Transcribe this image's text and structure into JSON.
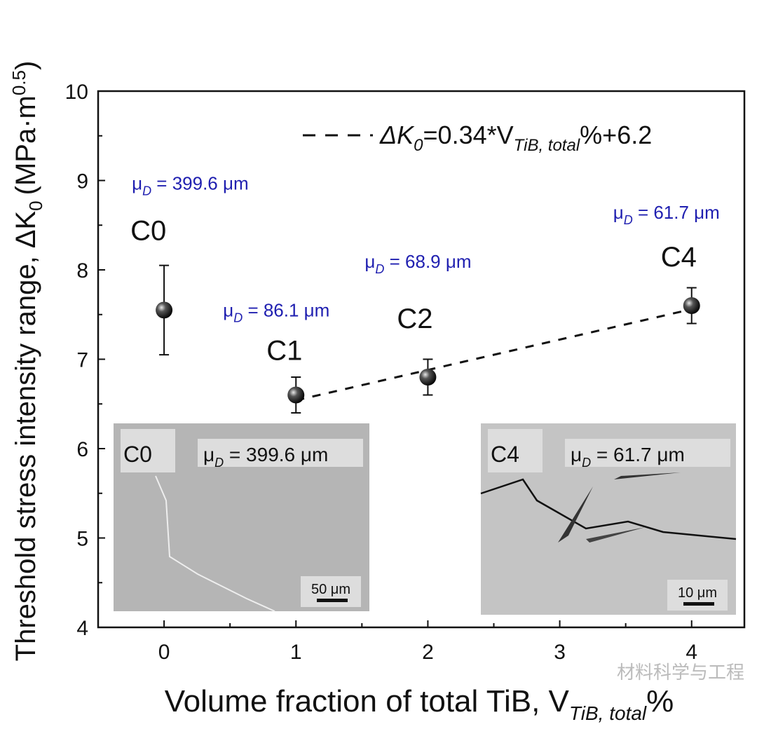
{
  "chart_data": {
    "type": "scatter",
    "xlabel": "Volume fraction of total TiB, V",
    "xlabel_sub": "TiB, total",
    "xlabel_tail": "%",
    "ylabel": "Threshold stress intensity range, ΔK",
    "ylabel_sub": "0",
    "ylabel_unit": "(MPa·m",
    "ylabel_unit_sup": "0.5",
    "ylabel_unit_close": ")",
    "xlim": [
      -0.5,
      4.4
    ],
    "ylim": [
      4,
      10
    ],
    "x_ticks": [
      "0",
      "1",
      "2",
      "3",
      "4"
    ],
    "y_ticks": [
      "4",
      "5",
      "6",
      "7",
      "8",
      "9",
      "10"
    ],
    "grid": false,
    "points": [
      {
        "label": "C0",
        "x": 0,
        "y": 7.55,
        "err_low": 7.05,
        "err_high": 8.05,
        "mu_prefix": "μ",
        "mu_sub": "D",
        "mu_text": " = 399.6 μm"
      },
      {
        "label": "C1",
        "x": 1,
        "y": 6.6,
        "err_low": 6.4,
        "err_high": 6.8,
        "mu_prefix": "μ",
        "mu_sub": "D",
        "mu_text": " = 86.1 μm"
      },
      {
        "label": "C2",
        "x": 2,
        "y": 6.8,
        "err_low": 6.6,
        "err_high": 7.0,
        "mu_prefix": "μ",
        "mu_sub": "D",
        "mu_text": " = 68.9 μm"
      },
      {
        "label": "C4",
        "x": 4,
        "y": 7.6,
        "err_low": 7.4,
        "err_high": 7.8,
        "mu_prefix": "μ",
        "mu_sub": "D",
        "mu_text": " = 61.7 μm"
      }
    ],
    "fit": {
      "slope": 0.34,
      "intercept": 6.2,
      "x_range": [
        1,
        4
      ],
      "style": "dashed",
      "legend_a": "ΔK",
      "legend_a_sub": "0",
      "legend_b": "=0.34*V",
      "legend_b_sub": "TiB, total",
      "legend_c": "%+6.2",
      "legend_position": "top-right"
    },
    "insets": [
      {
        "label": "C0",
        "mu_prefix": "μ",
        "mu_sub": "D",
        "mu_text": " = 399.6 μm",
        "scale_bar": "50 μm"
      },
      {
        "label": "C4",
        "mu_prefix": "μ",
        "mu_sub": "D",
        "mu_text": " = 61.7 μm",
        "scale_bar": "10 μm"
      }
    ],
    "marker_color": "#111111",
    "mu_color": "#1f1fb0"
  },
  "watermark": "材料科学与工程"
}
